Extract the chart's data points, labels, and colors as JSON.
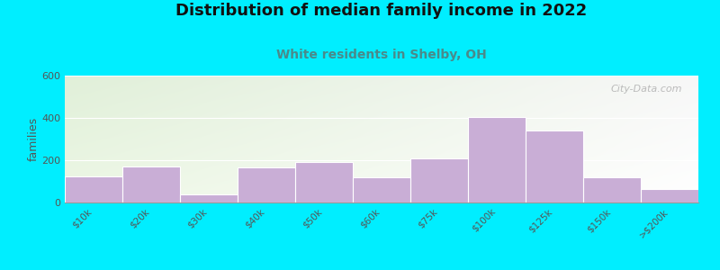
{
  "categories": [
    "$10k",
    "$20k",
    "$30k",
    "$40k",
    "$50k",
    "$60k",
    "$75k",
    "$100k",
    "$125k",
    "$150k",
    ">$200k"
  ],
  "values": [
    125,
    170,
    40,
    165,
    190,
    120,
    210,
    405,
    340,
    120,
    65
  ],
  "bar_color": "#c9aed6",
  "bar_edge_color": "#d8c0e0",
  "title": "Distribution of median family income in 2022",
  "subtitle": "White residents in Shelby, OH",
  "ylabel": "families",
  "ylim": [
    0,
    600
  ],
  "yticks": [
    0,
    200,
    400,
    600
  ],
  "title_fontsize": 13,
  "subtitle_fontsize": 10,
  "subtitle_color": "#4a8a8a",
  "ylabel_fontsize": 9,
  "background_outer": "#00eeff",
  "watermark": "City-Data.com",
  "grad_topleft": [
    0.88,
    0.94,
    0.85
  ],
  "grad_topright": [
    0.97,
    0.97,
    0.97
  ],
  "grad_botleft": [
    0.93,
    0.97,
    0.9
  ],
  "grad_botright": [
    1.0,
    1.0,
    1.0
  ]
}
